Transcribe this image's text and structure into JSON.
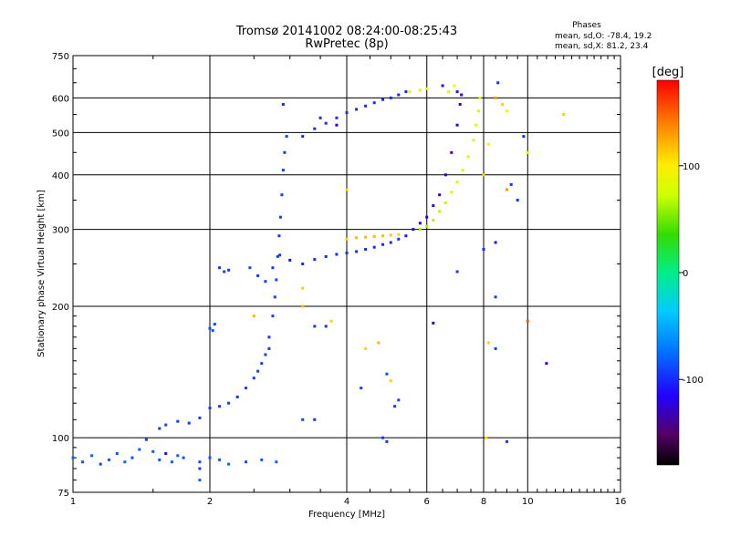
{
  "chart_data": {
    "type": "scatter",
    "title": "Tromsø 20141002 08:24:00-08:25:43",
    "subtitle": "RwPretec (8p)",
    "xlabel": "Frequency [MHz]",
    "ylabel": "Stationary phase Virtual Height [km]",
    "x_scale": "log2",
    "y_scale": "log",
    "xlim": [
      1,
      16
    ],
    "ylim": [
      75,
      750
    ],
    "x_ticks": [
      1,
      2,
      4,
      6,
      8,
      10,
      16
    ],
    "y_ticks": [
      75,
      100,
      200,
      300,
      400,
      500,
      600,
      750
    ],
    "grid": true,
    "phase_box": {
      "heading": "Phases",
      "line_o": "mean, sd,O: -78.4, 19.2",
      "line_x": "mean, sd,X:  81.2, 23.4"
    },
    "colorbar": {
      "label": "[deg]",
      "range": [
        -180,
        180
      ],
      "ticks": [
        100,
        0,
        -100
      ]
    },
    "series": [
      {
        "points": [
          [
            1.0,
            90,
            -80
          ],
          [
            1.05,
            88,
            -85
          ],
          [
            1.1,
            91,
            -75
          ],
          [
            1.15,
            87,
            -90
          ],
          [
            1.2,
            89,
            -80
          ],
          [
            1.25,
            92,
            -85
          ],
          [
            1.3,
            88,
            -78
          ],
          [
            1.35,
            90,
            -88
          ],
          [
            1.4,
            94,
            -80
          ],
          [
            1.45,
            99,
            -90
          ],
          [
            1.5,
            93,
            -82
          ],
          [
            1.55,
            89,
            -86
          ],
          [
            1.6,
            92,
            -110
          ],
          [
            1.65,
            88,
            -84
          ],
          [
            1.7,
            91,
            -80
          ],
          [
            1.75,
            90,
            -86
          ],
          [
            1.9,
            88,
            -90
          ],
          [
            2.0,
            90,
            -85
          ],
          [
            2.1,
            89,
            -82
          ],
          [
            2.2,
            87,
            -80
          ],
          [
            2.4,
            88,
            -86
          ],
          [
            2.6,
            89,
            -84
          ],
          [
            2.8,
            88,
            -82
          ],
          [
            1.55,
            105,
            -95
          ],
          [
            1.6,
            107,
            -90
          ],
          [
            1.7,
            109,
            -92
          ],
          [
            1.8,
            108,
            -95
          ],
          [
            1.9,
            111,
            -95
          ],
          [
            2.0,
            117,
            -92
          ],
          [
            2.1,
            118,
            -95
          ],
          [
            2.2,
            120,
            -93
          ],
          [
            2.3,
            124,
            -95
          ],
          [
            2.4,
            130,
            -92
          ],
          [
            2.5,
            137,
            -95
          ],
          [
            2.55,
            142,
            -92
          ],
          [
            2.6,
            148,
            -92
          ],
          [
            2.65,
            155,
            -93
          ],
          [
            2.7,
            160,
            -95
          ],
          [
            2.7,
            170,
            -95
          ],
          [
            2.75,
            190,
            -90
          ],
          [
            2.78,
            210,
            -92
          ],
          [
            2.8,
            230,
            -90
          ],
          [
            2.82,
            260,
            -92
          ],
          [
            2.84,
            290,
            -95
          ],
          [
            2.86,
            320,
            -92
          ],
          [
            2.88,
            360,
            -95
          ],
          [
            2.9,
            410,
            -92
          ],
          [
            2.92,
            450,
            -95
          ],
          [
            2.95,
            490,
            -92
          ],
          [
            2.0,
            178,
            -88
          ],
          [
            2.03,
            176,
            -86
          ],
          [
            2.05,
            182,
            -90
          ],
          [
            2.1,
            245,
            -95
          ],
          [
            2.15,
            240,
            -93
          ],
          [
            2.2,
            242,
            -95
          ],
          [
            2.45,
            245,
            -90
          ],
          [
            2.55,
            235,
            -95
          ],
          [
            2.65,
            228,
            -92
          ],
          [
            2.75,
            245,
            -95
          ],
          [
            2.85,
            262,
            -95
          ],
          [
            3.0,
            255,
            -110
          ],
          [
            3.2,
            250,
            -100
          ],
          [
            3.4,
            256,
            -100
          ],
          [
            3.6,
            260,
            -100
          ],
          [
            3.8,
            263,
            -100
          ],
          [
            4.0,
            265,
            -100
          ],
          [
            4.2,
            267,
            -100
          ],
          [
            4.4,
            270,
            -100
          ],
          [
            4.6,
            273,
            -100
          ],
          [
            4.8,
            277,
            -100
          ],
          [
            5.0,
            280,
            -100
          ],
          [
            5.2,
            285,
            -100
          ],
          [
            5.4,
            290,
            -110
          ],
          [
            4.0,
            285,
            110
          ],
          [
            4.2,
            287,
            120
          ],
          [
            4.4,
            288,
            120
          ],
          [
            4.6,
            289,
            120
          ],
          [
            4.8,
            290,
            118
          ],
          [
            5.0,
            291,
            115
          ],
          [
            5.2,
            292,
            110
          ],
          [
            5.6,
            300,
            -120
          ],
          [
            5.8,
            310,
            -120
          ],
          [
            6.0,
            320,
            -125
          ],
          [
            6.2,
            340,
            -125
          ],
          [
            6.4,
            360,
            -130
          ],
          [
            6.6,
            400,
            -130
          ],
          [
            6.8,
            450,
            -130
          ],
          [
            7.0,
            520,
            -128
          ],
          [
            7.1,
            580,
            -130
          ],
          [
            7.15,
            610,
            -128
          ],
          [
            5.8,
            300,
            60
          ],
          [
            6.0,
            305,
            62
          ],
          [
            6.2,
            315,
            65
          ],
          [
            6.4,
            330,
            68
          ],
          [
            6.6,
            345,
            70
          ],
          [
            6.8,
            365,
            72
          ],
          [
            7.0,
            385,
            74
          ],
          [
            7.2,
            410,
            76
          ],
          [
            7.4,
            440,
            78
          ],
          [
            7.6,
            480,
            80
          ],
          [
            7.7,
            520,
            80
          ],
          [
            7.8,
            560,
            80
          ],
          [
            7.85,
            600,
            80
          ],
          [
            3.2,
            490,
            -100
          ],
          [
            3.4,
            510,
            -100
          ],
          [
            3.6,
            525,
            -100
          ],
          [
            3.8,
            540,
            -100
          ],
          [
            4.0,
            555,
            -100
          ],
          [
            4.2,
            565,
            -100
          ],
          [
            4.4,
            575,
            -100
          ],
          [
            4.6,
            585,
            -100
          ],
          [
            4.8,
            595,
            -100
          ],
          [
            5.0,
            600,
            -100
          ],
          [
            5.2,
            610,
            -100
          ],
          [
            5.4,
            620,
            -100
          ],
          [
            5.5,
            620,
            80
          ],
          [
            5.8,
            625,
            85
          ],
          [
            6.0,
            630,
            88
          ],
          [
            6.5,
            640,
            -110
          ],
          [
            7.0,
            620,
            -110
          ],
          [
            6.7,
            620,
            90
          ],
          [
            6.9,
            640,
            95
          ],
          [
            2.9,
            580,
            -100
          ],
          [
            3.5,
            540,
            -100
          ],
          [
            3.8,
            520,
            -120
          ],
          [
            3.2,
            110,
            -90
          ],
          [
            3.4,
            110,
            -95
          ],
          [
            3.6,
            180,
            -100
          ],
          [
            3.7,
            185,
            110
          ],
          [
            3.2,
            200,
            120
          ],
          [
            3.4,
            180,
            -95
          ],
          [
            4.3,
            130,
            -92
          ],
          [
            4.4,
            160,
            110
          ],
          [
            4.7,
            165,
            120
          ],
          [
            4.9,
            140,
            -88
          ],
          [
            5.0,
            135,
            110
          ],
          [
            5.1,
            118,
            -95
          ],
          [
            5.2,
            122,
            -90
          ],
          [
            4.8,
            100,
            -95
          ],
          [
            4.9,
            98,
            -95
          ],
          [
            6.2,
            183,
            -130
          ],
          [
            7.0,
            240,
            -95
          ],
          [
            8.0,
            270,
            -100
          ],
          [
            8.5,
            280,
            -110
          ],
          [
            8.5,
            210,
            -95
          ],
          [
            8.2,
            165,
            110
          ],
          [
            8.5,
            160,
            -95
          ],
          [
            9.0,
            98,
            -95
          ],
          [
            10.0,
            185,
            150
          ],
          [
            11.0,
            148,
            -130
          ],
          [
            9.0,
            560,
            100
          ],
          [
            8.8,
            580,
            110
          ],
          [
            9.0,
            370,
            130
          ],
          [
            9.5,
            350,
            -95
          ],
          [
            9.8,
            490,
            -100
          ],
          [
            10.0,
            450,
            90
          ],
          [
            12.0,
            550,
            110
          ],
          [
            8.5,
            600,
            130
          ],
          [
            8.6,
            650,
            -100
          ],
          [
            4.0,
            370,
            110
          ],
          [
            2.5,
            190,
            120
          ],
          [
            8.2,
            470,
            100
          ],
          [
            8.0,
            400,
            110
          ],
          [
            9.2,
            380,
            -95
          ],
          [
            8.1,
            100,
            110
          ],
          [
            3.2,
            220,
            110
          ],
          [
            1.9,
            80,
            -80
          ],
          [
            1.9,
            85,
            -95
          ]
        ]
      }
    ]
  }
}
